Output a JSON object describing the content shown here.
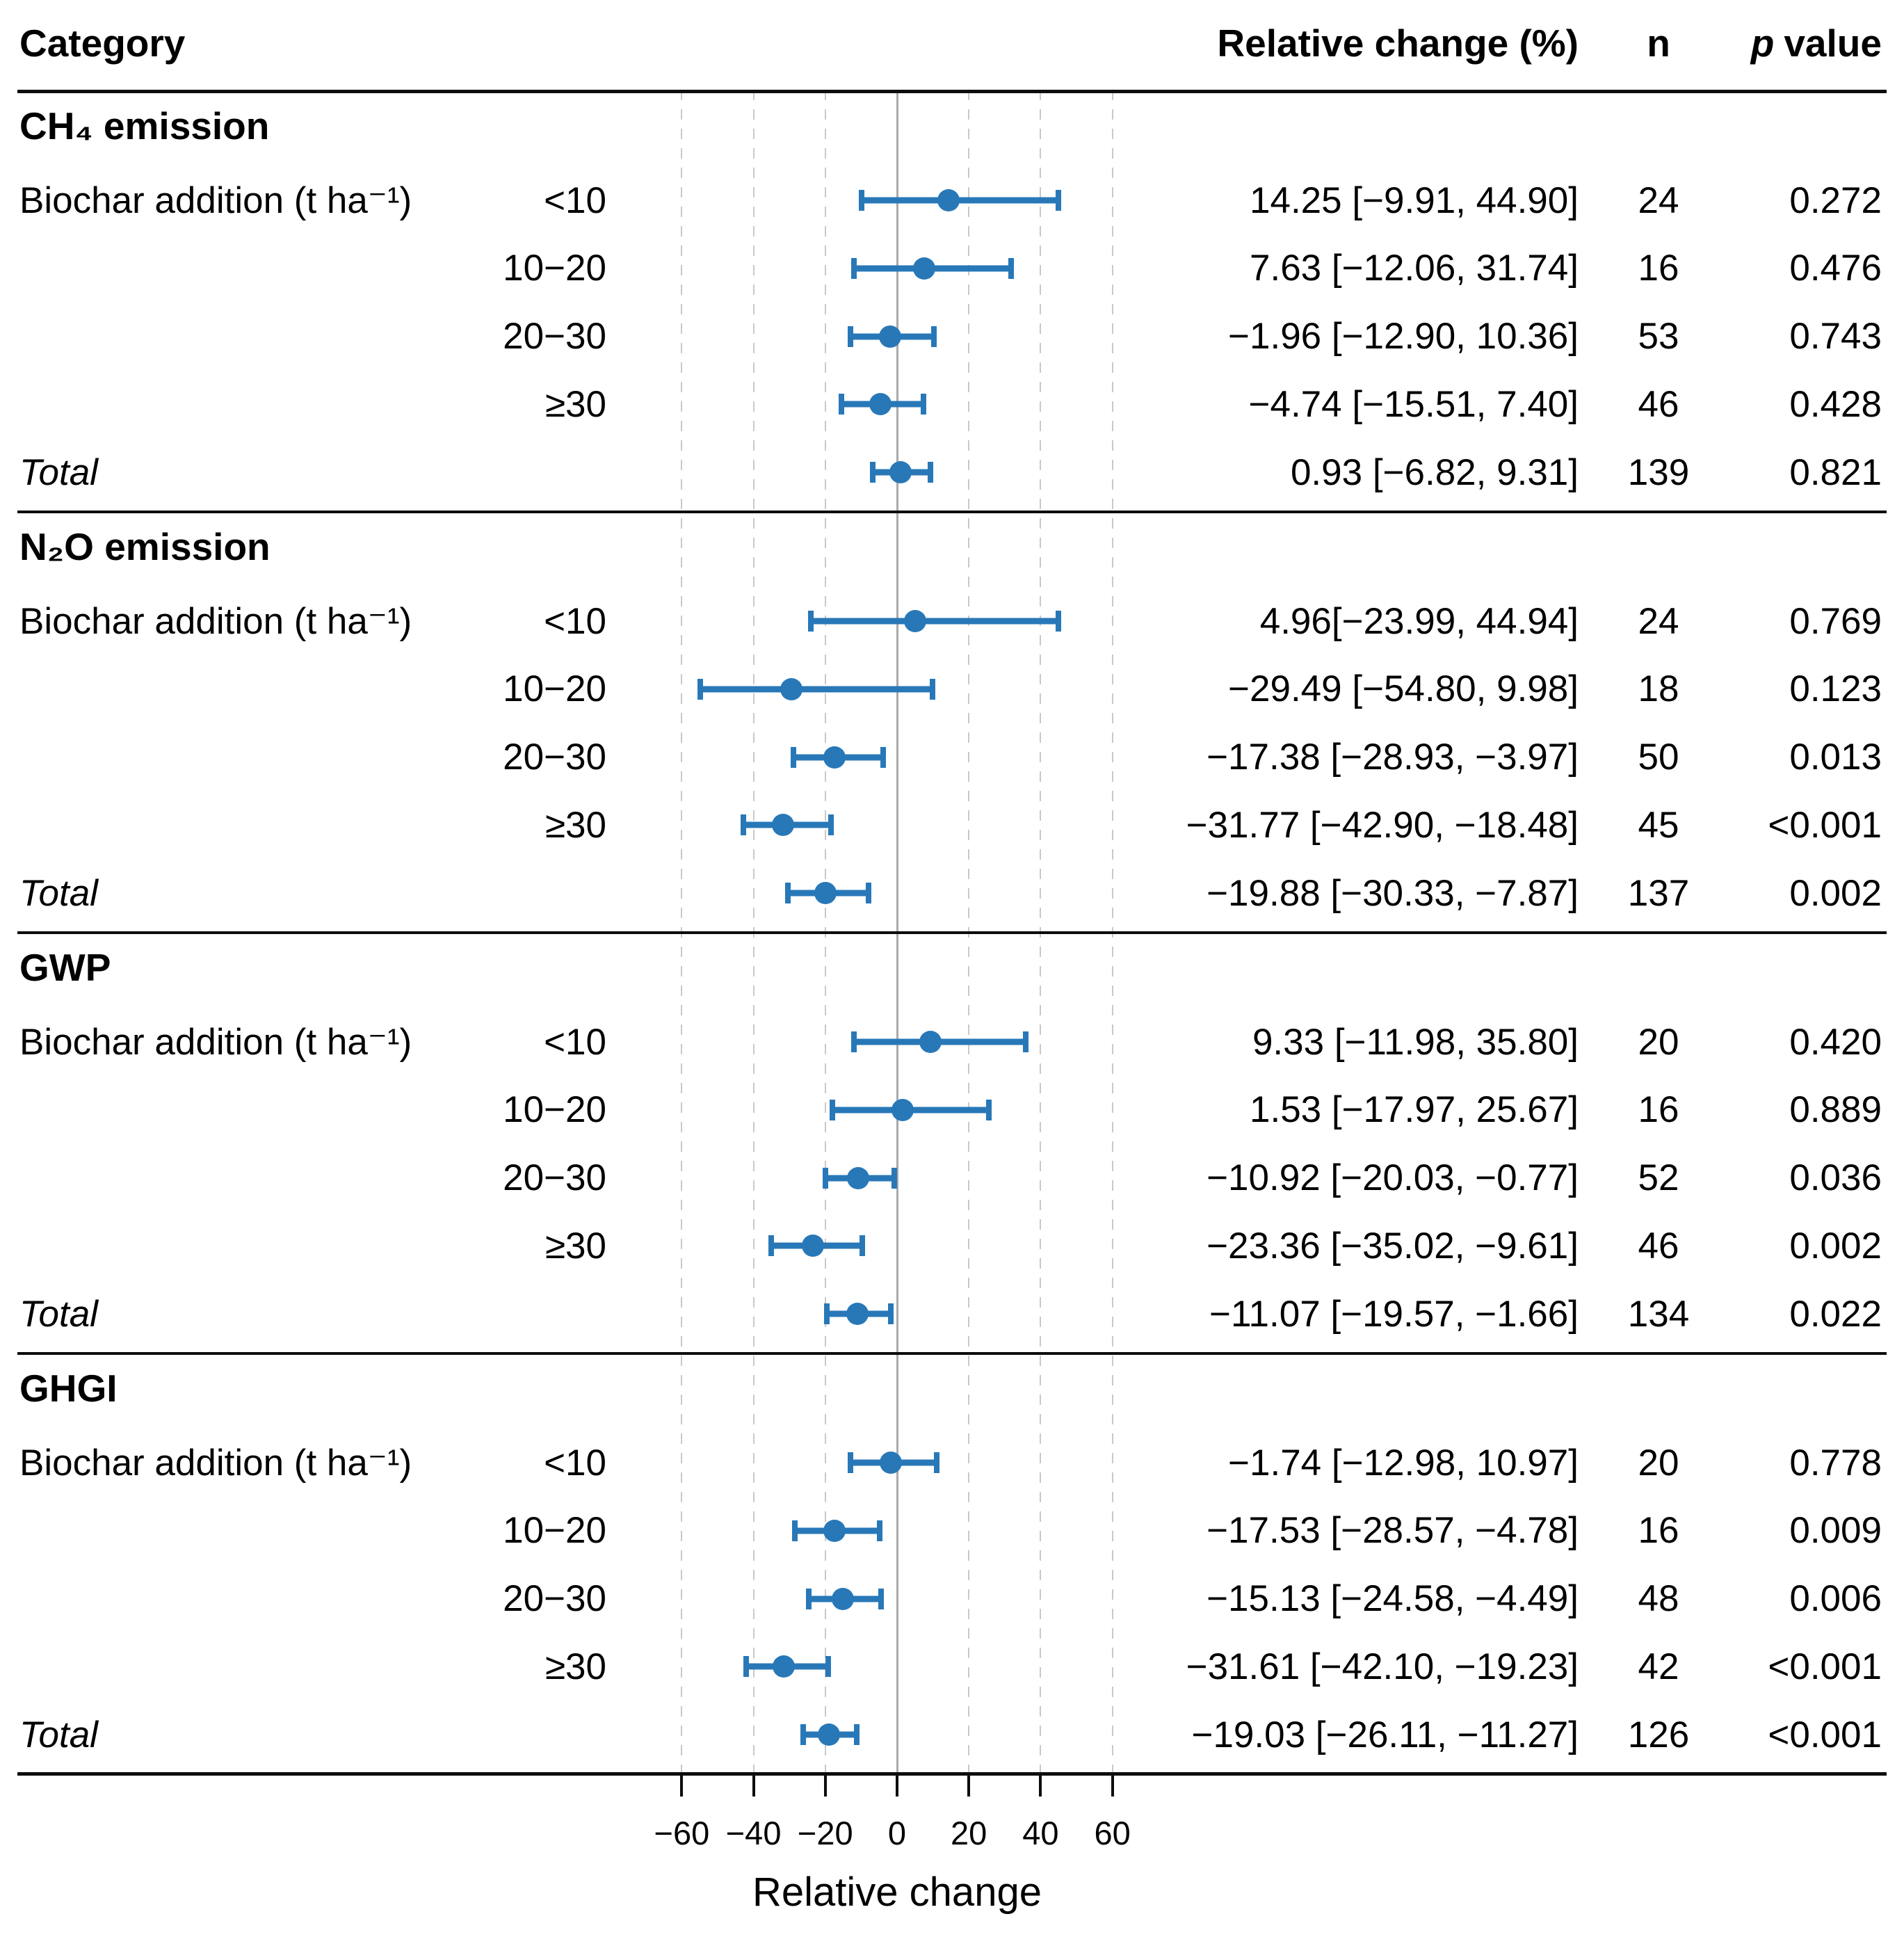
{
  "header": {
    "category": "Category",
    "relative_change": "Relative change (%)",
    "n": "n",
    "p_italic": "p",
    "p_rest": "value"
  },
  "axis": {
    "title": "Relative change",
    "ticks": [
      "−60",
      "−40",
      "−20",
      "0",
      "20",
      "40",
      "60"
    ],
    "tick_values": [
      -60,
      -40,
      -20,
      0,
      20,
      40,
      60
    ]
  },
  "colors": {
    "marker": "#2878b8",
    "zero_line": "#a9a9a9",
    "gridline": "#c9c9c9",
    "rule": "#0d0d0d",
    "text": "#000000"
  },
  "chart_data": {
    "type": "forest",
    "xlabel": "Relative change",
    "xlim": [
      -70,
      70
    ],
    "gridlines": [
      -60,
      -40,
      -20,
      20,
      40,
      60
    ],
    "zero_line": 0,
    "legend": "none",
    "sections": [
      {
        "title": "CH₄ emission",
        "group_label": "Biochar addition (t ha⁻¹)",
        "rows": [
          {
            "label": "<10",
            "estimate": 14.25,
            "ci_low": -9.91,
            "ci_high": 44.9,
            "ci_text": "14.25 [−9.91, 44.90]",
            "n": "24",
            "p": "0.272"
          },
          {
            "label": "10−20",
            "estimate": 7.63,
            "ci_low": -12.06,
            "ci_high": 31.74,
            "ci_text": "7.63 [−12.06, 31.74]",
            "n": "16",
            "p": "0.476"
          },
          {
            "label": "20−30",
            "estimate": -1.96,
            "ci_low": -12.9,
            "ci_high": 10.36,
            "ci_text": "−1.96 [−12.90, 10.36]",
            "n": "53",
            "p": "0.743"
          },
          {
            "label": "≥30",
            "estimate": -4.74,
            "ci_low": -15.51,
            "ci_high": 7.4,
            "ci_text": "−4.74 [−15.51, 7.40]",
            "n": "46",
            "p": "0.428"
          },
          {
            "label": "Total",
            "total": true,
            "estimate": 0.93,
            "ci_low": -6.82,
            "ci_high": 9.31,
            "ci_text": "0.93 [−6.82, 9.31]",
            "n": "139",
            "p": "0.821"
          }
        ]
      },
      {
        "title": "N₂O emission",
        "group_label": "Biochar addition (t ha⁻¹)",
        "rows": [
          {
            "label": "<10",
            "estimate": 4.96,
            "ci_low": -23.99,
            "ci_high": 44.94,
            "ci_text": "4.96[−23.99, 44.94]",
            "n": "24",
            "p": "0.769"
          },
          {
            "label": "10−20",
            "estimate": -29.49,
            "ci_low": -54.8,
            "ci_high": 9.98,
            "ci_text": "−29.49 [−54.80, 9.98]",
            "n": "18",
            "p": "0.123"
          },
          {
            "label": "20−30",
            "estimate": -17.38,
            "ci_low": -28.93,
            "ci_high": -3.97,
            "ci_text": "−17.38 [−28.93, −3.97]",
            "n": "50",
            "p": "0.013"
          },
          {
            "label": "≥30",
            "estimate": -31.77,
            "ci_low": -42.9,
            "ci_high": -18.48,
            "ci_text": "−31.77 [−42.90, −18.48]",
            "n": "45",
            "p": "<0.001"
          },
          {
            "label": "Total",
            "total": true,
            "estimate": -19.88,
            "ci_low": -30.33,
            "ci_high": -7.87,
            "ci_text": "−19.88 [−30.33, −7.87]",
            "n": "137",
            "p": "0.002"
          }
        ]
      },
      {
        "title": "GWP",
        "group_label": "Biochar addition (t ha⁻¹)",
        "rows": [
          {
            "label": "<10",
            "estimate": 9.33,
            "ci_low": -11.98,
            "ci_high": 35.8,
            "ci_text": "9.33 [−11.98, 35.80]",
            "n": "20",
            "p": "0.420"
          },
          {
            "label": "10−20",
            "estimate": 1.53,
            "ci_low": -17.97,
            "ci_high": 25.67,
            "ci_text": "1.53 [−17.97, 25.67]",
            "n": "16",
            "p": "0.889"
          },
          {
            "label": "20−30",
            "estimate": -10.92,
            "ci_low": -20.03,
            "ci_high": -0.77,
            "ci_text": "−10.92 [−20.03, −0.77]",
            "n": "52",
            "p": "0.036"
          },
          {
            "label": "≥30",
            "estimate": -23.36,
            "ci_low": -35.02,
            "ci_high": -9.61,
            "ci_text": "−23.36 [−35.02, −9.61]",
            "n": "46",
            "p": "0.002"
          },
          {
            "label": "Total",
            "total": true,
            "estimate": -11.07,
            "ci_low": -19.57,
            "ci_high": -1.66,
            "ci_text": "−11.07 [−19.57, −1.66]",
            "n": "134",
            "p": "0.022"
          }
        ]
      },
      {
        "title": "GHGI",
        "group_label": "Biochar addition (t ha⁻¹)",
        "rows": [
          {
            "label": "<10",
            "estimate": -1.74,
            "ci_low": -12.98,
            "ci_high": 10.97,
            "ci_text": "−1.74 [−12.98, 10.97]",
            "n": "20",
            "p": "0.778"
          },
          {
            "label": "10−20",
            "estimate": -17.53,
            "ci_low": -28.57,
            "ci_high": -4.78,
            "ci_text": "−17.53 [−28.57, −4.78]",
            "n": "16",
            "p": "0.009"
          },
          {
            "label": "20−30",
            "estimate": -15.13,
            "ci_low": -24.58,
            "ci_high": -4.49,
            "ci_text": "−15.13 [−24.58, −4.49]",
            "n": "48",
            "p": "0.006"
          },
          {
            "label": "≥30",
            "estimate": -31.61,
            "ci_low": -42.1,
            "ci_high": -19.23,
            "ci_text": "−31.61 [−42.10, −19.23]",
            "n": "42",
            "p": "<0.001"
          },
          {
            "label": "Total",
            "total": true,
            "estimate": -19.03,
            "ci_low": -26.11,
            "ci_high": -11.27,
            "ci_text": "−19.03 [−26.11, −11.27]",
            "n": "126",
            "p": "<0.001"
          }
        ]
      }
    ]
  }
}
